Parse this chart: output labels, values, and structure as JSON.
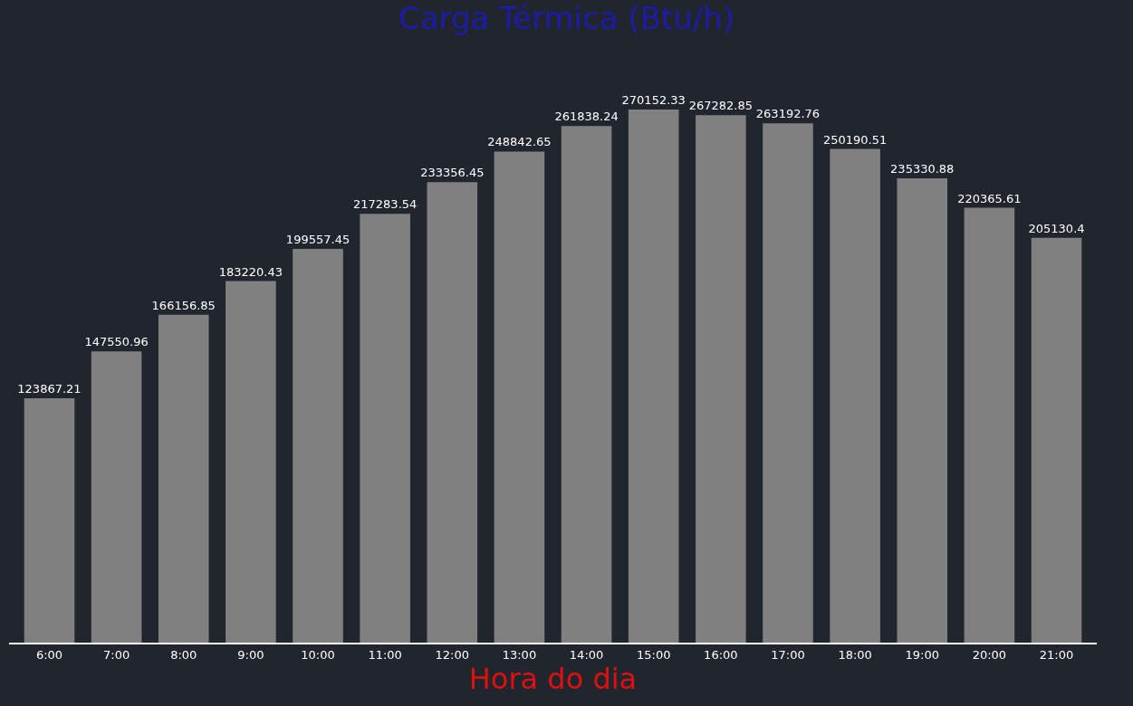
{
  "chart_data": {
    "type": "bar",
    "title": "Carga Térmica (Btu/h)",
    "xlabel": "Hora do dia",
    "categories": [
      "6:00",
      "7:00",
      "8:00",
      "9:00",
      "10:00",
      "11:00",
      "12:00",
      "13:00",
      "14:00",
      "15:00",
      "16:00",
      "17:00",
      "18:00",
      "19:00",
      "20:00",
      "21:00"
    ],
    "values": [
      123867.21,
      147550.96,
      166156.85,
      183220.43,
      199557.45,
      217283.54,
      233356.45,
      248842.65,
      261838.24,
      270152.33,
      267282.85,
      263192.76,
      250190.51,
      235330.88,
      220365.61,
      205130.4
    ],
    "color": "#808080",
    "data_labels": true,
    "tick_labels": "x",
    "grid": false,
    "legend": false
  }
}
